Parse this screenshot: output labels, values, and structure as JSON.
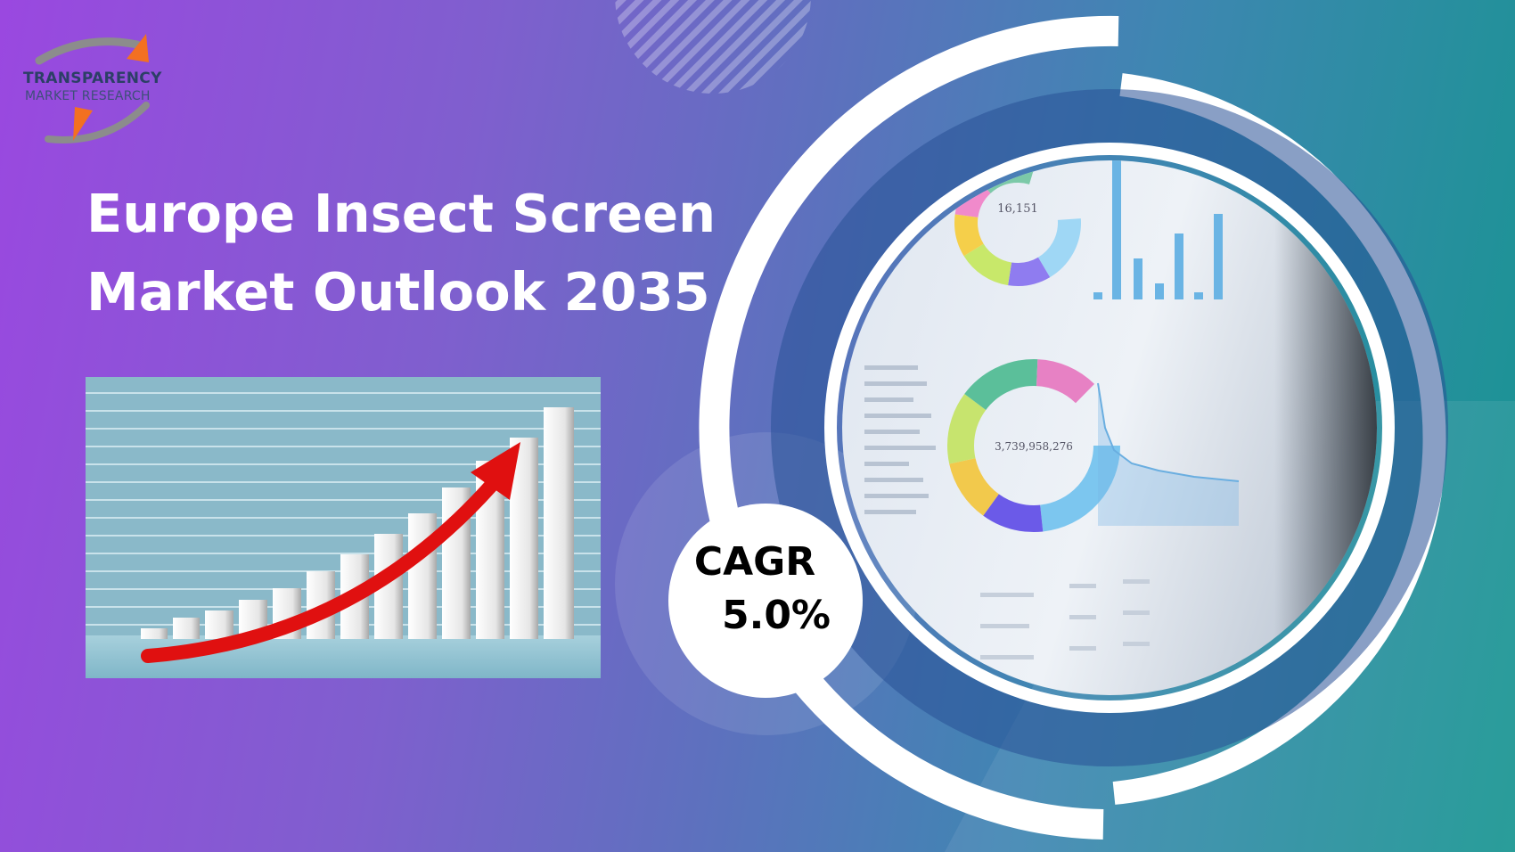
{
  "logo": {
    "line1": "TRANSPARENCY",
    "line2": "MARKET RESEARCH",
    "colors": {
      "arrow": "#f37021",
      "swoosh": "#8c8c8c",
      "text": "#2c3f66"
    }
  },
  "title": {
    "line1": "Europe Insect Screen",
    "line2": "Market Outlook 2035"
  },
  "cagr": {
    "label": "CAGR",
    "value": "5.0%"
  },
  "dashboard": {
    "donut1_value": "16,151",
    "donut2_value": "3,739,958,276"
  },
  "colors": {
    "background_start": "#9a48e0",
    "background_end": "#179591",
    "ring": "#ffffff",
    "growth_arrow": "#e01010"
  },
  "icons": [
    "logo-arrow-icon",
    "growth-arrow-icon"
  ]
}
